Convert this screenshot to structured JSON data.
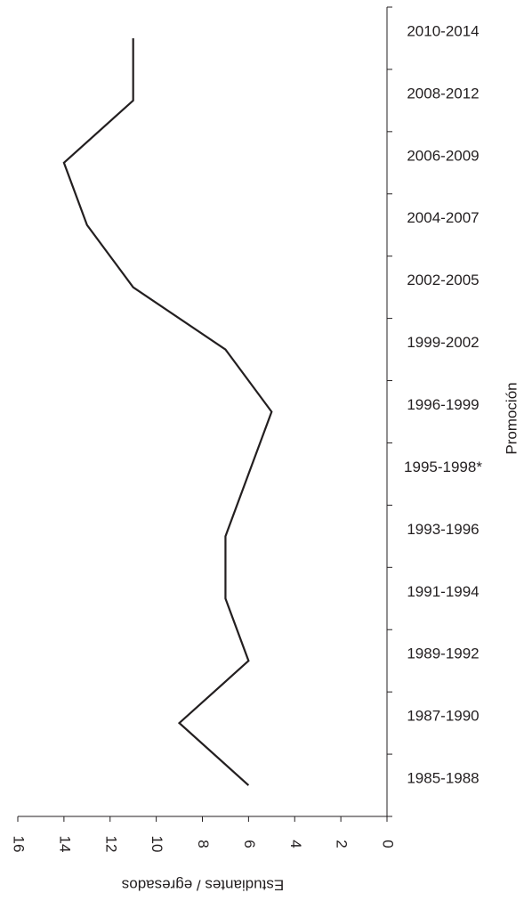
{
  "chart_data": {
    "type": "line",
    "orientation": "horizontal",
    "value_axis_reversed": true,
    "xlabel": "Promoción",
    "ylabel": "Estudiantes / egresados",
    "categories": [
      "1985-1988",
      "1987-1990",
      "1989-1992",
      "1991-1994",
      "1993-1996",
      "1995-1998*",
      "1996-1999",
      "1999-2002",
      "2002-2005",
      "2004-2007",
      "2006-2009",
      "2008-2012",
      "2010-2014"
    ],
    "values": [
      6,
      9,
      6,
      7,
      7,
      6,
      5,
      7,
      11,
      13,
      14,
      11,
      11
    ],
    "color": "#231f20",
    "ylim": [
      0,
      16
    ],
    "yticks": [
      0,
      2,
      4,
      6,
      8,
      10,
      12,
      14,
      16
    ]
  }
}
